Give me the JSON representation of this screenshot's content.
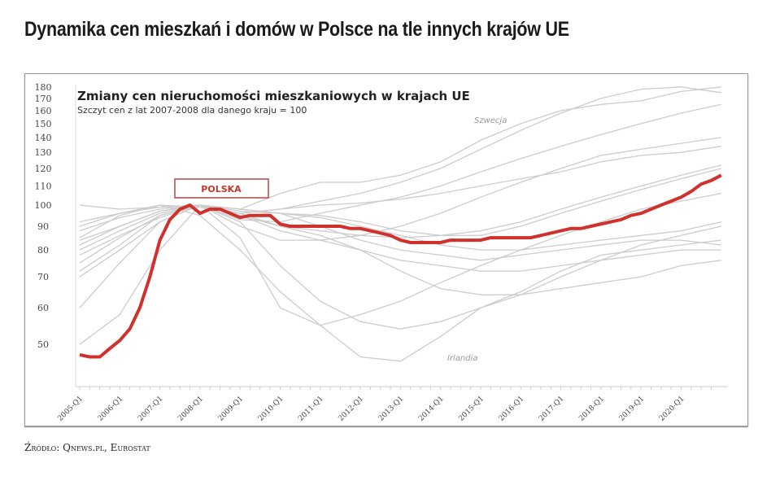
{
  "page_title": "Dynamika cen mieszkań i domów w Polsce na tle innych krajów UE",
  "source": "Źródło: Qnews.pl, Eurostat",
  "chart_data": {
    "type": "line",
    "title": "Zmiany cen nieruchomości mieszkaniowych w krajach UE",
    "subtitle": "Szczyt cen z lat 2007-2008 dla danego kraju = 100",
    "y_scale": "log",
    "ylim": [
      45,
      182
    ],
    "y_ticks": [
      180,
      170,
      160,
      150,
      140,
      130,
      120,
      110,
      100,
      90,
      80,
      70,
      60,
      50
    ],
    "x_tick_labels": [
      "2005-Q1",
      "2006-Q1",
      "2007-Q1",
      "2008-Q1",
      "2009-Q1",
      "2010-Q1",
      "2011-Q1",
      "2012-Q1",
      "2013-Q1",
      "2014-Q1",
      "2015-Q1",
      "2016-Q1",
      "2017-Q1",
      "2018-Q1",
      "2019-Q1",
      "2020-Q1"
    ],
    "highlight": {
      "name": "POLSKA",
      "color": "#d0312d",
      "start": 2005.0,
      "step": 0.25,
      "values": [
        47.5,
        47,
        47,
        49,
        51,
        54,
        60,
        70,
        84,
        93,
        98,
        100,
        96,
        98,
        98,
        96,
        94,
        95,
        95,
        95,
        91,
        90,
        90,
        90,
        90,
        90,
        90,
        89,
        89,
        88,
        87,
        86,
        84,
        83,
        83,
        83,
        83,
        84,
        84,
        84,
        84,
        85,
        85,
        85,
        85,
        85,
        86,
        87,
        88,
        89,
        89,
        90,
        91,
        92,
        93,
        95,
        96,
        98,
        100,
        102,
        104,
        107,
        111,
        113,
        116
      ]
    },
    "others_color": "#cccccc",
    "others": [
      {
        "name": "Szwecja",
        "label": "Szwecja",
        "start": 2005,
        "step": 1,
        "values": [
          80,
          88,
          96,
          100,
          98,
          106,
          112,
          112,
          116,
          124,
          138,
          150,
          160,
          165,
          168,
          176,
          180
        ]
      },
      {
        "name": "Irlandia",
        "label": "Irlandia",
        "start": 2005,
        "step": 1,
        "values": [
          85,
          95,
          100,
          95,
          80,
          65,
          55,
          47,
          46,
          52,
          60,
          65,
          72,
          78,
          80,
          82,
          84
        ]
      },
      {
        "name": "s3",
        "start": 2005,
        "step": 1,
        "values": [
          72,
          82,
          95,
          100,
          96,
          98,
          102,
          106,
          112,
          120,
          132,
          145,
          158,
          170,
          178,
          180,
          175
        ]
      },
      {
        "name": "s4",
        "start": 2005,
        "step": 1,
        "values": [
          88,
          94,
          98,
          100,
          93,
          92,
          96,
          100,
          104,
          110,
          118,
          126,
          134,
          142,
          150,
          158,
          165
        ]
      },
      {
        "name": "s5",
        "start": 2005,
        "step": 1,
        "values": [
          60,
          75,
          92,
          100,
          90,
          84,
          84,
          86,
          90,
          96,
          104,
          112,
          120,
          128,
          132,
          136,
          140
        ]
      },
      {
        "name": "s6",
        "start": 2005,
        "step": 1,
        "values": [
          50,
          58,
          80,
          100,
          92,
          74,
          62,
          56,
          54,
          56,
          60,
          64,
          70,
          76,
          82,
          86,
          90
        ]
      },
      {
        "name": "s7",
        "start": 2005,
        "step": 1,
        "values": [
          90,
          96,
          99,
          100,
          97,
          96,
          95,
          92,
          88,
          86,
          86,
          90,
          96,
          102,
          108,
          114,
          120
        ]
      },
      {
        "name": "s8",
        "start": 2005,
        "step": 1,
        "values": [
          78,
          86,
          94,
          100,
          98,
          96,
          94,
          90,
          86,
          82,
          80,
          80,
          82,
          84,
          86,
          88,
          92
        ]
      },
      {
        "name": "s9",
        "start": 2005,
        "step": 1,
        "values": [
          100,
          98,
          99,
          100,
          98,
          96,
          90,
          84,
          80,
          78,
          76,
          78,
          80,
          82,
          84,
          84,
          82
        ]
      },
      {
        "name": "s10",
        "start": 2005,
        "step": 1,
        "values": [
          84,
          90,
          97,
          100,
          95,
          88,
          84,
          80,
          76,
          74,
          72,
          72,
          74,
          76,
          78,
          80,
          80
        ]
      },
      {
        "name": "s11",
        "start": 2005,
        "step": 1,
        "values": [
          70,
          80,
          92,
          100,
          85,
          60,
          55,
          58,
          62,
          68,
          74,
          80,
          86,
          92,
          98,
          102,
          106
        ]
      },
      {
        "name": "s12",
        "start": 2005,
        "step": 1,
        "values": [
          75,
          85,
          95,
          100,
          96,
          90,
          86,
          80,
          72,
          66,
          64,
          64,
          66,
          68,
          70,
          74,
          76
        ]
      },
      {
        "name": "s13",
        "start": 2005,
        "step": 1,
        "values": [
          92,
          96,
          100,
          99,
          96,
          98,
          100,
          101,
          103,
          106,
          110,
          114,
          118,
          124,
          128,
          130,
          134
        ]
      },
      {
        "name": "s14",
        "start": 2005,
        "step": 1,
        "values": [
          82,
          90,
          97,
          100,
          95,
          90,
          88,
          86,
          85,
          86,
          88,
          92,
          98,
          104,
          110,
          116,
          122
        ]
      }
    ]
  }
}
